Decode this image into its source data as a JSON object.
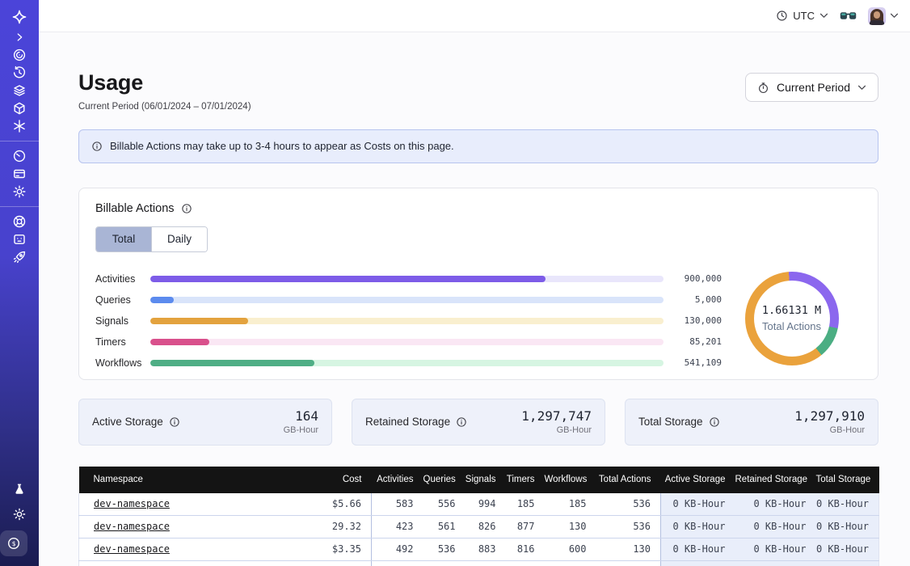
{
  "colors": {
    "sidebar_top": "#4b44d9",
    "sidebar_bottom": "#1a1c50",
    "table_header_bg": "#141414",
    "banner_bg": "#e8edfc",
    "banner_border": "#b7c4ef",
    "storage_card_bg": "#eef1fa",
    "tab_active_bg": "#a9b5d5"
  },
  "sidebar": {
    "icons": [
      "temporal-logo",
      "expand-chevron",
      "namespaces",
      "schedules",
      "batch-operations",
      "deployments",
      "nexus",
      "usage",
      "billing",
      "settings",
      "support",
      "feedback",
      "getting-started",
      "labs",
      "theme-toggle",
      "pricing"
    ]
  },
  "topbar": {
    "timezone": "UTC"
  },
  "header": {
    "title": "Usage",
    "subtitle": "Current Period (06/01/2024 – 07/01/2024)",
    "period_button_label": "Current Period"
  },
  "banner": {
    "text": "Billable Actions may take up to 3-4 hours to appear as Costs on this page."
  },
  "billable": {
    "title": "Billable Actions",
    "tabs": [
      {
        "label": "Total",
        "active": true
      },
      {
        "label": "Daily",
        "active": false
      }
    ]
  },
  "chart_data": [
    {
      "type": "bar",
      "title": "Billable Actions",
      "orientation": "horizontal",
      "categories": [
        "Activities",
        "Queries",
        "Signals",
        "Timers",
        "Workflows"
      ],
      "values": [
        900000,
        5000,
        130000,
        85201,
        541109
      ],
      "value_labels": [
        "900,000",
        "5,000",
        "130,000",
        "85,201",
        "541,109"
      ],
      "display_percent": [
        77,
        4.5,
        19,
        11.5,
        32
      ],
      "bar_colors": [
        "#7d5ce8",
        "#5c8bee",
        "#e3a23e",
        "#d9508c",
        "#4fae85"
      ],
      "track_colors": [
        "#e9e6fb",
        "#d9e4fa",
        "#f9efcf",
        "#fae7f4",
        "#d6f5e2"
      ],
      "xlim": [
        0,
        1200000
      ],
      "grid": false,
      "legend": "none"
    },
    {
      "type": "pie",
      "subtype": "donut",
      "center_value": "1.66131 M",
      "center_label": "Total Actions",
      "total_actions": 1661310,
      "rotation_deg": -4,
      "slices": [
        {
          "name": "purple-segment",
          "color": "#8b67ee",
          "start_deg": 0,
          "end_deg": 106,
          "percent": 29.4
        },
        {
          "name": "green-segment",
          "color": "#4bae83",
          "start_deg": 106,
          "end_deg": 145,
          "percent": 10.8
        },
        {
          "name": "orange-segment",
          "color": "#eaa23c",
          "start_deg": 145,
          "end_deg": 360,
          "percent": 59.8
        }
      ]
    }
  ],
  "storage_cards": [
    {
      "label": "Active Storage",
      "value": "164",
      "unit": "GB-Hour"
    },
    {
      "label": "Retained Storage",
      "value": "1,297,747",
      "unit": "GB-Hour"
    },
    {
      "label": "Total Storage",
      "value": "1,297,910",
      "unit": "GB-Hour"
    }
  ],
  "table": {
    "headers": [
      "Namespace",
      "Cost",
      "Activities",
      "Queries",
      "Signals",
      "Timers",
      "Workflows",
      "Total Actions",
      "Active Storage",
      "Retained Storage",
      "Total Storage"
    ],
    "rows": [
      {
        "namespace": "dev-namespace",
        "cost": "$5.66",
        "activities": "583",
        "queries": "556",
        "signals": "994",
        "timers": "185",
        "workflows": "185",
        "total_actions": "536",
        "active_storage": "0 KB-Hour",
        "retained_storage": "0 KB-Hour",
        "total_storage": "0 KB-Hour"
      },
      {
        "namespace": "dev-namespace",
        "cost": "29.32",
        "activities": "423",
        "queries": "561",
        "signals": "826",
        "timers": "877",
        "workflows": "130",
        "total_actions": "536",
        "active_storage": "0 KB-Hour",
        "retained_storage": "0 KB-Hour",
        "total_storage": "0 KB-Hour"
      },
      {
        "namespace": "dev-namespace",
        "cost": "$3.35",
        "activities": "492",
        "queries": "536",
        "signals": "883",
        "timers": "816",
        "workflows": "600",
        "total_actions": "130",
        "active_storage": "0 KB-Hour",
        "retained_storage": "0 KB-Hour",
        "total_storage": "0 KB-Hour"
      }
    ]
  }
}
